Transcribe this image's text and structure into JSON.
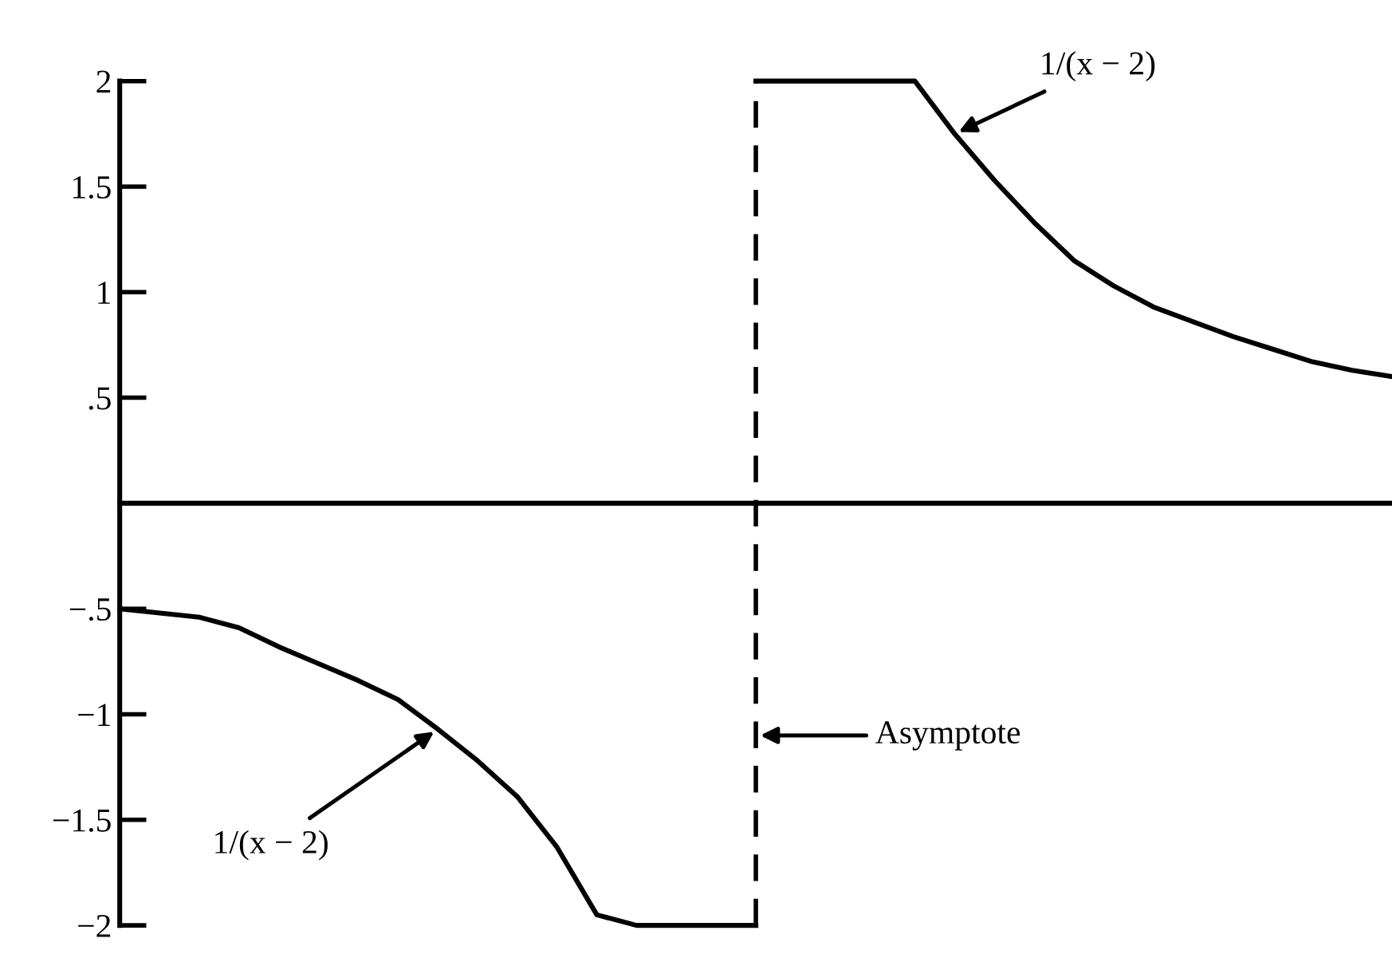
{
  "chart_data": {
    "type": "line",
    "categories": [
      null,
      null,
      null,
      null,
      null,
      null,
      null,
      null,
      null,
      null,
      null,
      null,
      null,
      null,
      null,
      null,
      null,
      null,
      null,
      null,
      null,
      null,
      null,
      null,
      null,
      null,
      null,
      null,
      null,
      null,
      null,
      null,
      null
    ],
    "series": [
      {
        "color": "#000000",
        "values": [
          -0.5,
          -0.52,
          -0.54,
          -0.59,
          -0.68,
          -0.76,
          -0.84,
          -0.93,
          -1.07,
          -1.22,
          -1.39,
          -1.63,
          -1.95,
          -2,
          -2,
          -2,
          -2,
          null,
          null,
          null,
          null,
          null,
          null,
          null,
          null,
          null,
          null,
          null,
          null,
          null,
          null,
          null,
          null
        ]
      },
      {
        "color": "#000000",
        "values": [
          null,
          null,
          null,
          null,
          null,
          null,
          null,
          null,
          null,
          null,
          null,
          null,
          null,
          null,
          null,
          null,
          2,
          2,
          2,
          2,
          2,
          1.75,
          1.53,
          1.33,
          1.15,
          1.03,
          0.93,
          0.86,
          0.79,
          0.73,
          0.67,
          0.63,
          0.6
        ]
      }
    ],
    "ylim": [
      -2,
      2
    ],
    "yticks": [
      2,
      1.5,
      1,
      {
        "value": 0.5,
        "label": ".5"
      },
      {
        "value": 0,
        "label": null
      },
      {
        "value": -0.5,
        "label": "−.5"
      },
      {
        "value": -1,
        "label": "−1"
      },
      {
        "value": -1.5,
        "label": "−1.5"
      },
      {
        "value": -2,
        "label": "−2"
      }
    ],
    "tick_labels": "y",
    "grid": false,
    "marker": "none",
    "line_style": "solid",
    "annotations": [
      "1/(x − 2)",
      "1/(x − 2)",
      "Asymptote"
    ]
  }
}
